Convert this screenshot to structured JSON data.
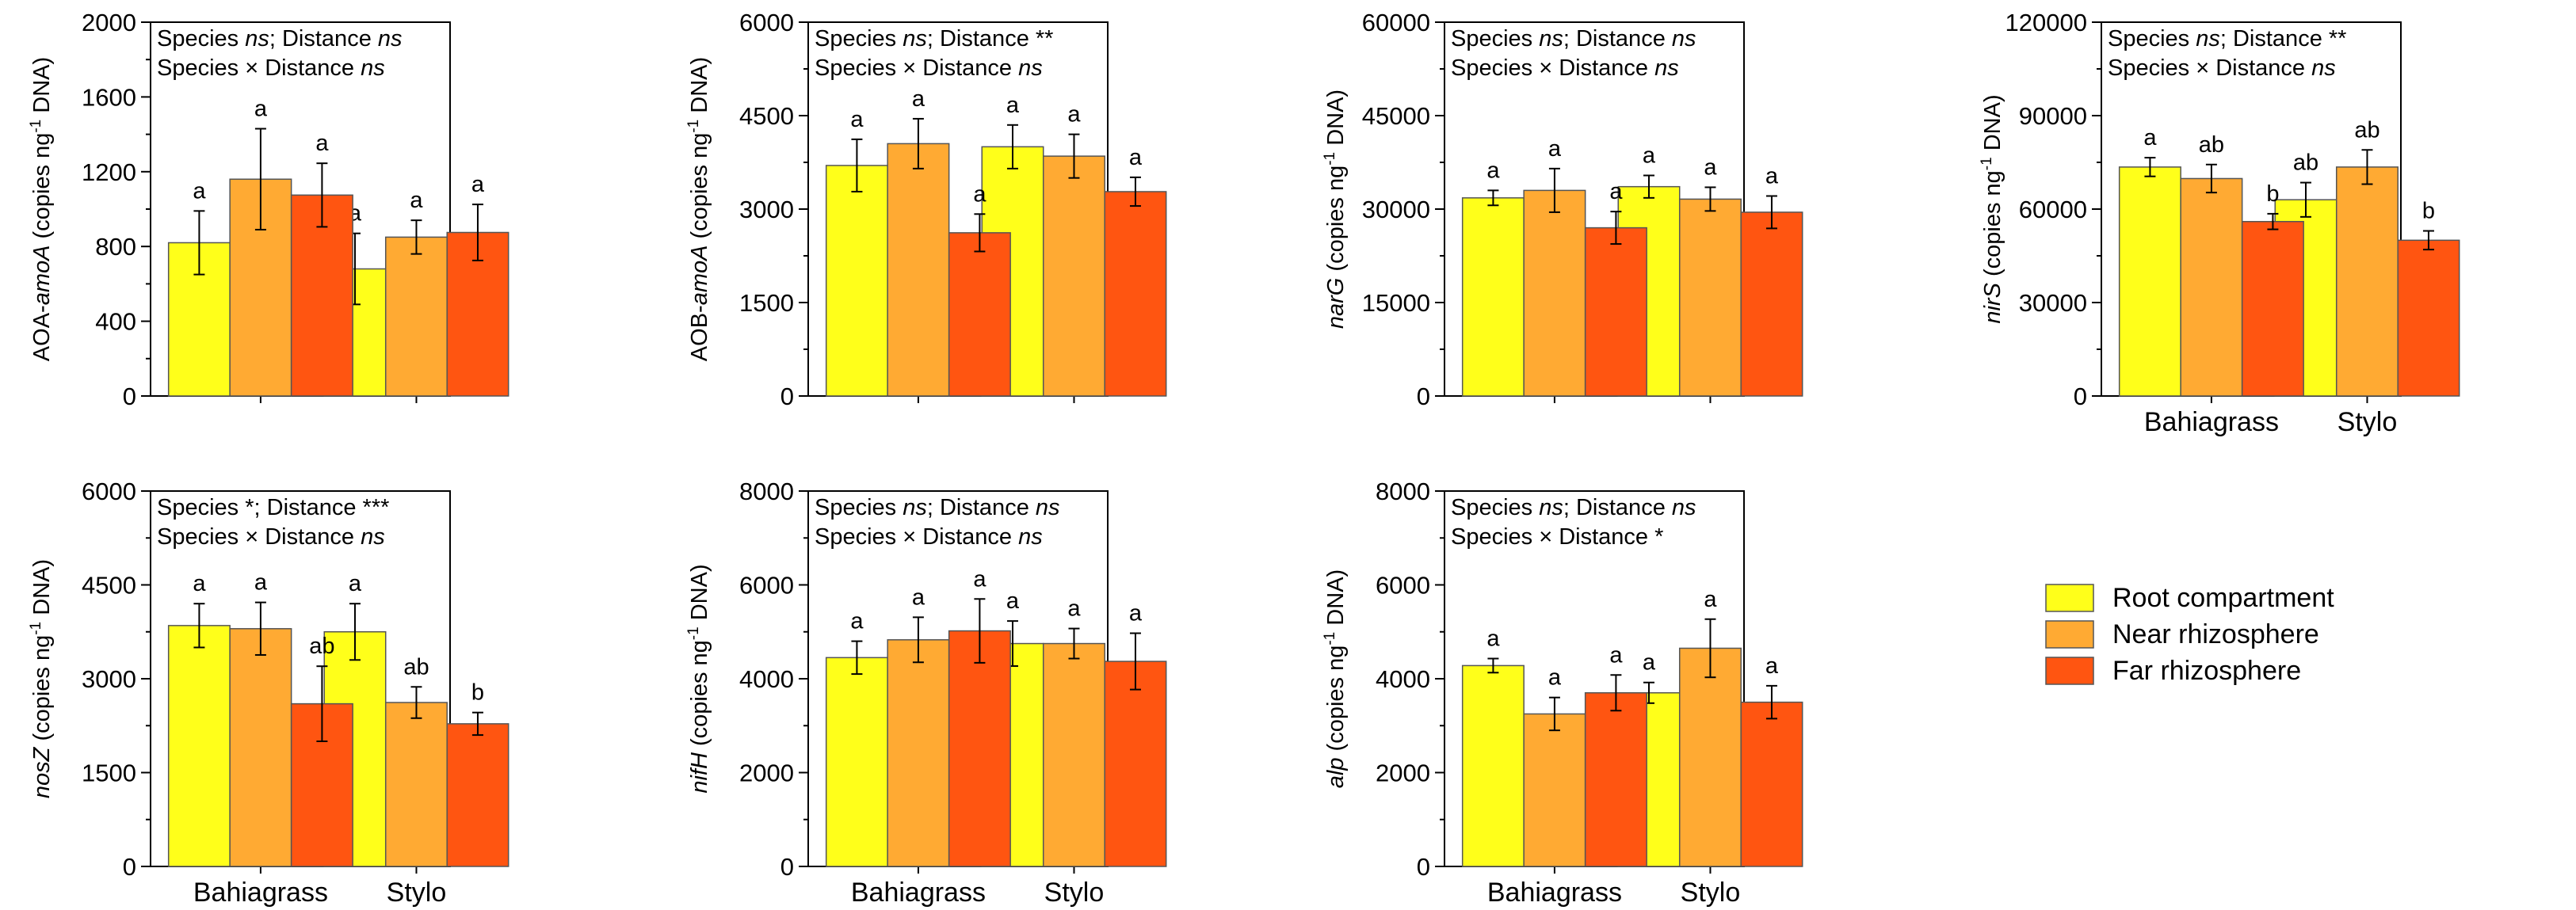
{
  "colors": {
    "root": "#FFFF1A",
    "near": "#FFAA33",
    "far": "#FF5511",
    "stroke": "#000000"
  },
  "legend": {
    "items": [
      {
        "label": "Root compartment",
        "color": "#FFFF1A"
      },
      {
        "label": "Near rhizosphere",
        "color": "#FFAA33"
      },
      {
        "label": "Far rhizosphere",
        "color": "#FF5511"
      }
    ]
  },
  "chart_data": [
    {
      "type": "bar",
      "ylabel": {
        "prefix": "AOA-",
        "gene": "amoA",
        "unit_pre": " (copies ng",
        "sup": "-1",
        "unit_post": " DNA)"
      },
      "ylim": [
        0,
        2000
      ],
      "yticks": [
        0,
        400,
        800,
        1200,
        1600,
        2000
      ],
      "annotation": [
        [
          {
            "t": "Species "
          },
          {
            "t": "ns",
            "it": true
          },
          {
            "t": "; Distance "
          },
          {
            "t": "ns",
            "it": true
          }
        ],
        [
          {
            "t": "Species × Distance "
          },
          {
            "t": "ns",
            "it": true
          }
        ]
      ],
      "categories": [
        "Bahiagrass",
        "Stylo"
      ],
      "show_categories": false,
      "series": [
        {
          "name": "Root compartment",
          "values": [
            820,
            680
          ],
          "errors": [
            170,
            190
          ],
          "letters": [
            "a",
            "a"
          ]
        },
        {
          "name": "Near rhizosphere",
          "values": [
            1160,
            850
          ],
          "errors": [
            270,
            90
          ],
          "letters": [
            "a",
            "a"
          ]
        },
        {
          "name": "Far rhizosphere",
          "values": [
            1075,
            875
          ],
          "errors": [
            170,
            150
          ],
          "letters": [
            "a",
            "a"
          ]
        }
      ]
    },
    {
      "type": "bar",
      "ylabel": {
        "prefix": "AOB-",
        "gene": "amoA",
        "unit_pre": " (copies ng",
        "sup": "-1",
        "unit_post": " DNA)"
      },
      "ylim": [
        0,
        6000
      ],
      "yticks": [
        0,
        1500,
        3000,
        4500,
        6000
      ],
      "annotation": [
        [
          {
            "t": "Species "
          },
          {
            "t": "ns",
            "it": true
          },
          {
            "t": "; Distance "
          },
          {
            "t": "**"
          }
        ],
        [
          {
            "t": "Species × Distance "
          },
          {
            "t": "ns",
            "it": true
          }
        ]
      ],
      "categories": [
        "Bahiagrass",
        "Stylo"
      ],
      "show_categories": false,
      "series": [
        {
          "name": "Root compartment",
          "values": [
            3700,
            4000
          ],
          "errors": [
            420,
            350
          ],
          "letters": [
            "a",
            "a"
          ]
        },
        {
          "name": "Near rhizosphere",
          "values": [
            4050,
            3850
          ],
          "errors": [
            400,
            350
          ],
          "letters": [
            "a",
            "a"
          ]
        },
        {
          "name": "Far rhizosphere",
          "values": [
            2620,
            3280
          ],
          "errors": [
            300,
            230
          ],
          "letters": [
            "a",
            "a"
          ]
        }
      ]
    },
    {
      "type": "bar",
      "ylabel": {
        "prefix": "",
        "gene": "narG",
        "unit_pre": " (copies ng",
        "sup": "-1",
        "unit_post": " DNA)"
      },
      "ylim": [
        0,
        60000
      ],
      "yticks": [
        0,
        15000,
        30000,
        45000,
        60000
      ],
      "annotation": [
        [
          {
            "t": "Species "
          },
          {
            "t": "ns",
            "it": true
          },
          {
            "t": "; Distance "
          },
          {
            "t": "ns",
            "it": true
          }
        ],
        [
          {
            "t": "Species × Distance "
          },
          {
            "t": "ns",
            "it": true
          }
        ]
      ],
      "categories": [
        "Bahiagrass",
        "Stylo"
      ],
      "show_categories": false,
      "series": [
        {
          "name": "Root compartment",
          "values": [
            31800,
            33600
          ],
          "errors": [
            1200,
            1800
          ],
          "letters": [
            "a",
            "a"
          ]
        },
        {
          "name": "Near rhizosphere",
          "values": [
            33000,
            31600
          ],
          "errors": [
            3500,
            1900
          ],
          "letters": [
            "a",
            "a"
          ]
        },
        {
          "name": "Far rhizosphere",
          "values": [
            27000,
            29500
          ],
          "errors": [
            2600,
            2600
          ],
          "letters": [
            "a",
            "a"
          ]
        }
      ]
    },
    {
      "type": "bar",
      "ylabel": {
        "prefix": "",
        "gene": "nirS",
        "unit_pre": " (copies ng",
        "sup": "-1",
        "unit_post": " DNA)"
      },
      "ylim": [
        0,
        120000
      ],
      "yticks": [
        0,
        30000,
        60000,
        90000,
        120000
      ],
      "annotation": [
        [
          {
            "t": "Species "
          },
          {
            "t": "ns",
            "it": true
          },
          {
            "t": "; Distance "
          },
          {
            "t": "**"
          }
        ],
        [
          {
            "t": "Species × Distance "
          },
          {
            "t": "ns",
            "it": true
          }
        ]
      ],
      "categories": [
        "Bahiagrass",
        "Stylo"
      ],
      "show_categories": true,
      "series": [
        {
          "name": "Root compartment",
          "values": [
            73500,
            63000
          ],
          "errors": [
            3000,
            5500
          ],
          "letters": [
            "a",
            "ab"
          ]
        },
        {
          "name": "Near rhizosphere",
          "values": [
            69800,
            73500
          ],
          "errors": [
            4500,
            5500
          ],
          "letters": [
            "ab",
            "ab"
          ]
        },
        {
          "name": "Far rhizosphere",
          "values": [
            56000,
            50000
          ],
          "errors": [
            2500,
            3000
          ],
          "letters": [
            "b",
            "b"
          ]
        }
      ]
    },
    {
      "type": "bar",
      "ylabel": {
        "prefix": "",
        "gene": "nosZ",
        "unit_pre": " (copies ng",
        "sup": "-1",
        "unit_post": " DNA)"
      },
      "ylim": [
        0,
        6000
      ],
      "yticks": [
        0,
        1500,
        3000,
        4500,
        6000
      ],
      "annotation": [
        [
          {
            "t": "Species "
          },
          {
            "t": "*"
          },
          {
            "t": "; Distance "
          },
          {
            "t": "***"
          }
        ],
        [
          {
            "t": "Species × Distance "
          },
          {
            "t": "ns",
            "it": true
          }
        ]
      ],
      "categories": [
        "Bahiagrass",
        "Stylo"
      ],
      "show_categories": true,
      "series": [
        {
          "name": "Root compartment",
          "values": [
            3850,
            3750
          ],
          "errors": [
            350,
            450
          ],
          "letters": [
            "a",
            "a"
          ]
        },
        {
          "name": "Near rhizosphere",
          "values": [
            3800,
            2620
          ],
          "errors": [
            420,
            250
          ],
          "letters": [
            "a",
            "ab"
          ]
        },
        {
          "name": "Far rhizosphere",
          "values": [
            2600,
            2280
          ],
          "errors": [
            600,
            180
          ],
          "letters": [
            "ab",
            "b"
          ]
        }
      ]
    },
    {
      "type": "bar",
      "ylabel": {
        "prefix": "",
        "gene": "nifH",
        "unit_pre": " (copies ng",
        "sup": "-1",
        "unit_post": " DNA)"
      },
      "ylim": [
        0,
        8000
      ],
      "yticks": [
        0,
        2000,
        4000,
        6000,
        8000
      ],
      "annotation": [
        [
          {
            "t": "Species "
          },
          {
            "t": "ns",
            "it": true
          },
          {
            "t": "; Distance "
          },
          {
            "t": "ns",
            "it": true
          }
        ],
        [
          {
            "t": "Species × Distance "
          },
          {
            "t": "ns",
            "it": true
          }
        ]
      ],
      "categories": [
        "Bahiagrass",
        "Stylo"
      ],
      "show_categories": true,
      "series": [
        {
          "name": "Root compartment",
          "values": [
            4450,
            4750
          ],
          "errors": [
            350,
            480
          ],
          "letters": [
            "a",
            "a"
          ]
        },
        {
          "name": "Near rhizosphere",
          "values": [
            4830,
            4750
          ],
          "errors": [
            480,
            320
          ],
          "letters": [
            "a",
            "a"
          ]
        },
        {
          "name": "Far rhizosphere",
          "values": [
            5020,
            4370
          ],
          "errors": [
            680,
            600
          ],
          "letters": [
            "a",
            "a"
          ]
        }
      ]
    },
    {
      "type": "bar",
      "ylabel": {
        "prefix": "",
        "gene": "alp",
        "unit_pre": " (copies ng",
        "sup": "-1",
        "unit_post": " DNA)"
      },
      "ylim": [
        0,
        8000
      ],
      "yticks": [
        0,
        2000,
        4000,
        6000,
        8000
      ],
      "annotation": [
        [
          {
            "t": "Species "
          },
          {
            "t": "ns",
            "it": true
          },
          {
            "t": "; Distance "
          },
          {
            "t": "ns",
            "it": true
          }
        ],
        [
          {
            "t": "Species × Distance "
          },
          {
            "t": "*"
          }
        ]
      ],
      "categories": [
        "Bahiagrass",
        "Stylo"
      ],
      "show_categories": true,
      "series": [
        {
          "name": "Root compartment",
          "values": [
            4280,
            3700
          ],
          "errors": [
            150,
            220
          ],
          "letters": [
            "a",
            "a"
          ]
        },
        {
          "name": "Near rhizosphere",
          "values": [
            3250,
            4650
          ],
          "errors": [
            350,
            620
          ],
          "letters": [
            "a",
            "a"
          ]
        },
        {
          "name": "Far rhizosphere",
          "values": [
            3700,
            3500
          ],
          "errors": [
            380,
            350
          ],
          "letters": [
            "a",
            "a"
          ]
        }
      ]
    }
  ]
}
